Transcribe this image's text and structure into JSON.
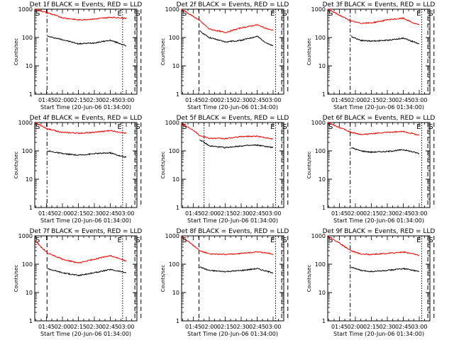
{
  "figure": {
    "background": "#ffffff",
    "axis_color": "#000000",
    "events_color": "#000000",
    "lld_color": "#ff0000"
  },
  "panels": [
    {
      "title": "Det 1f BLACK = Events, RED = LLD",
      "xlabel": "Start Time (20-Jun-06 01:34:00)",
      "ylabel": "Counts/sec",
      "x_tick_labels": [
        "01:45",
        "02:00",
        "02:15",
        "02:30",
        "02:45",
        "03:00"
      ],
      "y_tick_labels": [
        "1",
        "10",
        "100",
        "1000"
      ],
      "markers": [
        {
          "label": "S",
          "t": 0,
          "style": "solid"
        },
        {
          "label": "",
          "t": 12,
          "style": "dashdot"
        },
        {
          "label": "E",
          "t": 86,
          "style": "dot"
        },
        {
          "label": "",
          "t": 98,
          "style": "dash"
        },
        {
          "label": "S",
          "t": 104,
          "style": "dash"
        }
      ],
      "chart_data": {
        "type": "line",
        "title": "Det 1f BLACK = Events, RED = LLD",
        "xlabel": "Start Time (20-Jun-06 01:34:00)",
        "ylabel": "Counts/sec",
        "xlim": [
          "01:34",
          "03:10"
        ],
        "ylim": [
          1,
          1000
        ],
        "y_scale": "log",
        "series": [
          {
            "name": "Events",
            "color": "#000000",
            "x": [
              "01:46",
              "02:00",
              "02:15",
              "02:30",
              "02:45",
              "02:55",
              "03:00"
            ],
            "values": [
              110,
              85,
              60,
              65,
              80,
              60,
              50
            ]
          },
          {
            "name": "LLD",
            "color": "#ff0000",
            "x": [
              "01:34",
              "01:46",
              "02:00",
              "02:15",
              "02:30",
              "02:45",
              "02:55",
              "03:00"
            ],
            "values": [
              1000,
              750,
              500,
              420,
              450,
              520,
              500,
              470
            ]
          }
        ]
      }
    },
    {
      "title": "Det 2f BLACK = Events, RED = LLD",
      "xlabel": "Start Time (20-Jun-06 01:34:00)",
      "ylabel": "Counts/sec",
      "x_tick_labels": [
        "01:45",
        "02:00",
        "02:15",
        "02:30",
        "02:45",
        "03:00"
      ],
      "y_tick_labels": [
        "1",
        "10",
        "100",
        "1000"
      ],
      "markers": [
        {
          "label": "S",
          "t": 0,
          "style": "solid"
        },
        {
          "label": "",
          "t": 17,
          "style": "dash"
        },
        {
          "label": "E",
          "t": 92,
          "style": "dot"
        },
        {
          "label": "",
          "t": 98,
          "style": "dash"
        },
        {
          "label": "S",
          "t": 104,
          "style": "dash"
        }
      ],
      "chart_data": {
        "type": "line",
        "title": "Det 2f BLACK = Events, RED = LLD",
        "xlabel": "Start Time (20-Jun-06 01:34:00)",
        "ylabel": "Counts/sec",
        "xlim": [
          "01:34",
          "03:10"
        ],
        "ylim": [
          1,
          1000
        ],
        "y_scale": "log",
        "series": [
          {
            "name": "Events",
            "color": "#000000",
            "x": [
              "01:51",
              "02:00",
              "02:15",
              "02:30",
              "02:45",
              "02:55",
              "03:00"
            ],
            "values": [
              170,
              100,
              70,
              80,
              110,
              60,
              50
            ]
          },
          {
            "name": "LLD",
            "color": "#ff0000",
            "x": [
              "01:34",
              "01:51",
              "02:00",
              "02:15",
              "02:30",
              "02:45",
              "02:55",
              "03:00"
            ],
            "values": [
              1000,
              400,
              200,
              150,
              220,
              280,
              200,
              180
            ]
          }
        ]
      }
    },
    {
      "title": "Det 3f BLACK = Events, RED = LLD",
      "xlabel": "Start Time (20-Jun-06 01:34:00)",
      "ylabel": "Counts/sec",
      "x_tick_labels": [
        "01:45",
        "02:00",
        "02:15",
        "02:30",
        "02:45",
        "03:00"
      ],
      "y_tick_labels": [
        "1",
        "10",
        "100",
        "1000"
      ],
      "markers": [
        {
          "label": "S",
          "t": 0,
          "style": "solid"
        },
        {
          "label": "",
          "t": 22,
          "style": "dashdot"
        },
        {
          "label": "E",
          "t": 92,
          "style": "dot"
        },
        {
          "label": "",
          "t": 98,
          "style": "dash"
        },
        {
          "label": "S",
          "t": 104,
          "style": "dash"
        }
      ],
      "chart_data": {
        "type": "line",
        "title": "Det 3f BLACK = Events, RED = LLD",
        "xlabel": "Start Time (20-Jun-06 01:34:00)",
        "ylabel": "Counts/sec",
        "xlim": [
          "01:34",
          "03:10"
        ],
        "ylim": [
          1,
          1000
        ],
        "y_scale": "log",
        "series": [
          {
            "name": "Events",
            "color": "#000000",
            "x": [
              "01:56",
              "02:05",
              "02:15",
              "02:30",
              "02:45",
              "02:55",
              "03:00"
            ],
            "values": [
              110,
              80,
              75,
              80,
              95,
              70,
              60
            ]
          },
          {
            "name": "LLD",
            "color": "#ff0000",
            "x": [
              "01:34",
              "01:56",
              "02:05",
              "02:15",
              "02:30",
              "02:45",
              "02:55",
              "03:00"
            ],
            "values": [
              1000,
              380,
              320,
              330,
              420,
              480,
              320,
              280
            ]
          }
        ]
      }
    },
    {
      "title": "Det 4f BLACK = Events, RED = LLD",
      "xlabel": "Start Time (20-Jun-06 01:34:00)",
      "ylabel": "Counts/sec",
      "x_tick_labels": [
        "01:45",
        "02:00",
        "02:15",
        "02:30",
        "02:45",
        "03:00"
      ],
      "y_tick_labels": [
        "1",
        "10",
        "100",
        "1000"
      ],
      "markers": [
        {
          "label": "S",
          "t": 0,
          "style": "solid"
        },
        {
          "label": "",
          "t": 12,
          "style": "dashdot"
        },
        {
          "label": "E",
          "t": 86,
          "style": "dot"
        },
        {
          "label": "",
          "t": 98,
          "style": "dash"
        },
        {
          "label": "S",
          "t": 104,
          "style": "dash"
        }
      ],
      "chart_data": {
        "type": "line",
        "title": "Det 4f BLACK = Events, RED = LLD",
        "xlabel": "Start Time (20-Jun-06 01:34:00)",
        "ylabel": "Counts/sec",
        "xlim": [
          "01:34",
          "03:10"
        ],
        "ylim": [
          1,
          1000
        ],
        "y_scale": "log",
        "series": [
          {
            "name": "Events",
            "color": "#000000",
            "x": [
              "01:46",
              "02:00",
              "02:15",
              "02:30",
              "02:45",
              "02:55",
              "03:00"
            ],
            "values": [
              100,
              80,
              70,
              80,
              85,
              65,
              60
            ]
          },
          {
            "name": "LLD",
            "color": "#ff0000",
            "x": [
              "01:34",
              "01:46",
              "02:00",
              "02:15",
              "02:30",
              "02:45",
              "02:55",
              "03:00"
            ],
            "values": [
              1000,
              600,
              450,
              420,
              450,
              520,
              450,
              420
            ]
          }
        ]
      }
    },
    {
      "title": "Det 5f BLACK = Events, RED = LLD",
      "xlabel": "Start Time (20-Jun-06 01:34:00)",
      "ylabel": "Counts/sec",
      "x_tick_labels": [
        "01:45",
        "02:00",
        "02:15",
        "02:30",
        "02:45",
        "03:00"
      ],
      "y_tick_labels": [
        "1",
        "10",
        "100",
        "1000"
      ],
      "markers": [
        {
          "label": "S",
          "t": 0,
          "style": "solid"
        },
        {
          "label": "",
          "t": 22,
          "style": "dot"
        },
        {
          "label": "E",
          "t": 92,
          "style": "dot"
        },
        {
          "label": "",
          "t": 98,
          "style": "dash"
        },
        {
          "label": "S",
          "t": 104,
          "style": "dash"
        }
      ],
      "chart_data": {
        "type": "line",
        "title": "Det 5f BLACK = Events, RED = LLD",
        "xlabel": "Start Time (20-Jun-06 01:34:00)",
        "ylabel": "Counts/sec",
        "xlim": [
          "01:34",
          "03:10"
        ],
        "ylim": [
          1,
          1000
        ],
        "y_scale": "log",
        "series": [
          {
            "name": "Events",
            "color": "#000000",
            "x": [
              "01:51",
              "02:00",
              "02:15",
              "02:30",
              "02:45",
              "02:55",
              "03:00"
            ],
            "values": [
              250,
              150,
              130,
              150,
              160,
              140,
              130
            ]
          },
          {
            "name": "LLD",
            "color": "#ff0000",
            "x": [
              "01:34",
              "01:45",
              "01:51",
              "02:00",
              "02:15",
              "02:30",
              "02:45",
              "02:55",
              "03:00"
            ],
            "values": [
              900,
              550,
              350,
              280,
              270,
              320,
              330,
              280,
              260
            ]
          }
        ]
      }
    },
    {
      "title": "Det 6f BLACK = Events, RED = LLD",
      "xlabel": "Start Time (20-Jun-06 01:34:00)",
      "ylabel": "Counts/sec",
      "x_tick_labels": [
        "01:45",
        "02:00",
        "02:15",
        "02:30",
        "02:45",
        "03:00"
      ],
      "y_tick_labels": [
        "1",
        "10",
        "100",
        "1000"
      ],
      "markers": [
        {
          "label": "S",
          "t": 0,
          "style": "solid"
        },
        {
          "label": "",
          "t": 22,
          "style": "dashdot"
        },
        {
          "label": "E",
          "t": 92,
          "style": "dot"
        },
        {
          "label": "",
          "t": 98,
          "style": "dash"
        },
        {
          "label": "S",
          "t": 104,
          "style": "dash"
        }
      ],
      "chart_data": {
        "type": "line",
        "title": "Det 6f BLACK = Events, RED = LLD",
        "xlabel": "Start Time (20-Jun-06 01:34:00)",
        "ylabel": "Counts/sec",
        "xlim": [
          "01:34",
          "03:10"
        ],
        "ylim": [
          1,
          1000
        ],
        "y_scale": "log",
        "series": [
          {
            "name": "Events",
            "color": "#000000",
            "x": [
              "01:56",
              "02:05",
              "02:15",
              "02:30",
              "02:45",
              "02:55",
              "03:00"
            ],
            "values": [
              130,
              100,
              90,
              95,
              110,
              90,
              80
            ]
          },
          {
            "name": "LLD",
            "color": "#ff0000",
            "x": [
              "01:34",
              "01:56",
              "02:05",
              "02:15",
              "02:30",
              "02:45",
              "02:55",
              "03:00"
            ],
            "values": [
              1000,
              450,
              380,
              400,
              450,
              480,
              400,
              350
            ]
          }
        ]
      }
    },
    {
      "title": "Det 7f BLACK = Events, RED = LLD",
      "xlabel": "Start Time (20-Jun-06 01:34:00)",
      "ylabel": "Counts/sec",
      "x_tick_labels": [
        "01:45",
        "02:00",
        "02:15",
        "02:30",
        "02:45",
        "03:00"
      ],
      "y_tick_labels": [
        "1",
        "10",
        "100",
        "1000"
      ],
      "markers": [
        {
          "label": "S",
          "t": 0,
          "style": "solid"
        },
        {
          "label": "",
          "t": 12,
          "style": "dash"
        },
        {
          "label": "E",
          "t": 86,
          "style": "dot"
        },
        {
          "label": "",
          "t": 98,
          "style": "dash"
        },
        {
          "label": "S",
          "t": 104,
          "style": "dash"
        }
      ],
      "chart_data": {
        "type": "line",
        "title": "Det 7f BLACK = Events, RED = LLD",
        "xlabel": "Start Time (20-Jun-06 01:34:00)",
        "ylabel": "Counts/sec",
        "xlim": [
          "01:34",
          "03:10"
        ],
        "ylim": [
          1,
          1000
        ],
        "y_scale": "log",
        "series": [
          {
            "name": "Events",
            "color": "#000000",
            "x": [
              "01:46",
              "02:00",
              "02:15",
              "02:30",
              "02:45",
              "02:55",
              "03:00"
            ],
            "values": [
              70,
              50,
              40,
              50,
              65,
              55,
              50
            ]
          },
          {
            "name": "LLD",
            "color": "#ff0000",
            "x": [
              "01:34",
              "01:40",
              "01:46",
              "02:00",
              "02:15",
              "02:30",
              "02:45",
              "02:55",
              "03:00"
            ],
            "values": [
              700,
              400,
              250,
              150,
              110,
              150,
              200,
              150,
              130
            ]
          }
        ]
      }
    },
    {
      "title": "Det 8f BLACK = Events, RED = LLD",
      "xlabel": "Start Time (20-Jun-06 01:34:00)",
      "ylabel": "Counts/sec",
      "x_tick_labels": [
        "01:45",
        "02:00",
        "02:15",
        "02:30",
        "02:45",
        "03:00"
      ],
      "y_tick_labels": [
        "1",
        "10",
        "100",
        "1000"
      ],
      "markers": [
        {
          "label": "S",
          "t": 0,
          "style": "solid"
        },
        {
          "label": "",
          "t": 17,
          "style": "dash"
        },
        {
          "label": "E",
          "t": 92,
          "style": "dot"
        },
        {
          "label": "",
          "t": 98,
          "style": "dash"
        },
        {
          "label": "S",
          "t": 104,
          "style": "dash"
        }
      ],
      "chart_data": {
        "type": "line",
        "title": "Det 8f BLACK = Events, RED = LLD",
        "xlabel": "Start Time (20-Jun-06 01:34:00)",
        "ylabel": "Counts/sec",
        "xlim": [
          "01:34",
          "03:10"
        ],
        "ylim": [
          1,
          1000
        ],
        "y_scale": "log",
        "series": [
          {
            "name": "Events",
            "color": "#000000",
            "x": [
              "01:51",
              "02:00",
              "02:15",
              "02:30",
              "02:45",
              "02:55",
              "03:00"
            ],
            "values": [
              80,
              60,
              55,
              60,
              70,
              55,
              50
            ]
          },
          {
            "name": "LLD",
            "color": "#ff0000",
            "x": [
              "01:34",
              "01:51",
              "02:00",
              "02:15",
              "02:30",
              "02:45",
              "02:55",
              "03:00"
            ],
            "values": [
              1000,
              300,
              230,
              220,
              240,
              270,
              250,
              220
            ]
          }
        ]
      }
    },
    {
      "title": "Det 9f BLACK = Events, RED = LLD",
      "xlabel": "Start Time (20-Jun-06 01:34:00)",
      "ylabel": "Counts/sec",
      "x_tick_labels": [
        "01:45",
        "02:00",
        "02:15",
        "02:30",
        "02:45",
        "03:00"
      ],
      "y_tick_labels": [
        "1",
        "10",
        "100",
        "1000"
      ],
      "markers": [
        {
          "label": "S",
          "t": 0,
          "style": "solid"
        },
        {
          "label": "",
          "t": 22,
          "style": "dashdot"
        },
        {
          "label": "E",
          "t": 92,
          "style": "dot"
        },
        {
          "label": "",
          "t": 98,
          "style": "dash"
        },
        {
          "label": "S",
          "t": 104,
          "style": "dash"
        }
      ],
      "chart_data": {
        "type": "line",
        "title": "Det 9f BLACK = Events, RED = LLD",
        "xlabel": "Start Time (20-Jun-06 01:34:00)",
        "ylabel": "Counts/sec",
        "xlim": [
          "01:34",
          "03:10"
        ],
        "ylim": [
          1,
          1000
        ],
        "y_scale": "log",
        "series": [
          {
            "name": "Events",
            "color": "#000000",
            "x": [
              "01:56",
              "02:05",
              "02:15",
              "02:30",
              "02:45",
              "02:55",
              "03:00"
            ],
            "values": [
              80,
              60,
              55,
              60,
              70,
              60,
              55
            ]
          },
          {
            "name": "LLD",
            "color": "#ff0000",
            "x": [
              "01:34",
              "01:56",
              "02:05",
              "02:15",
              "02:30",
              "02:45",
              "02:55",
              "03:00"
            ],
            "values": [
              1000,
              300,
              230,
              220,
              240,
              270,
              230,
              200
            ]
          }
        ]
      }
    }
  ]
}
